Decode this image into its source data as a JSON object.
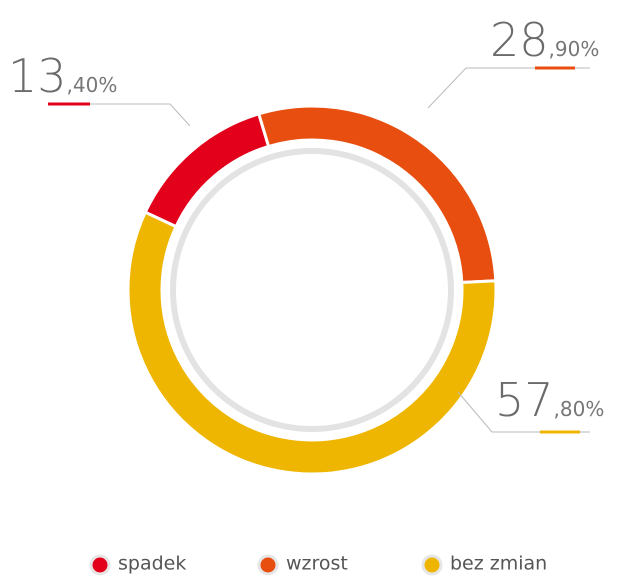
{
  "chart_data": {
    "type": "donut",
    "categories": [
      "spadek",
      "wzrost",
      "bez zmian"
    ],
    "values": [
      13.4,
      28.9,
      57.8
    ],
    "value_labels": [
      "13,40%",
      "28,90%",
      "57,80%"
    ],
    "colors": [
      "#e2001a",
      "#e84e0f",
      "#eeb600"
    ],
    "legend": "bottom"
  }
}
